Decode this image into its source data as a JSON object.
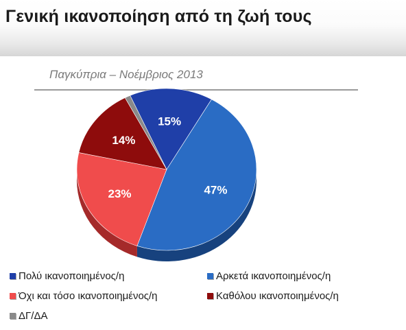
{
  "header": {
    "title": "Γενική ικανοποίηση από τη ζωή τους"
  },
  "subtitle": "Παγκύπρια – Νοέμβριος 2013",
  "chart_data": {
    "type": "pie",
    "title": "Γενική ικανοποίηση από τη ζωή τους",
    "subtitle": "Παγκύπρια – Νοέμβριος 2013",
    "slices": [
      {
        "name": "Πολύ  ικανοποιημένος/η",
        "value": 15,
        "label": "15%",
        "color": "#1f3fa8",
        "side": "#0f2472"
      },
      {
        "name": "Αρκετά ικανοποιημένος/η",
        "value": 47,
        "label": "47%",
        "color": "#2a6cc4",
        "side": "#17427e"
      },
      {
        "name": "Όχι και τόσο ικανοποιημένος/η",
        "value": 23,
        "label": "23%",
        "color": "#f04c4c",
        "side": "#a52a2a"
      },
      {
        "name": "Καθόλου ικανοποιημένος/η",
        "value": 14,
        "label": "14%",
        "color": "#8e0c0c",
        "side": "#560606"
      },
      {
        "name": "ΔΓ/ΔΑ",
        "value": 1,
        "label": "",
        "color": "#8a8a8a",
        "side": "#5c5c5c"
      }
    ],
    "legend_position": "bottom"
  },
  "legend": [
    {
      "label": "Πολύ  ικανοποιημένος/η",
      "color": "#1f3fa8"
    },
    {
      "label": "Αρκετά ικανοποιημένος/η",
      "color": "#2a6cc4"
    },
    {
      "label": "Όχι και τόσο ικανοποιημένος/η",
      "color": "#f04c4c"
    },
    {
      "label": "Καθόλου ικανοποιημένος/η",
      "color": "#8e0c0c"
    },
    {
      "label": "ΔΓ/ΔΑ",
      "color": "#8a8a8a"
    }
  ]
}
